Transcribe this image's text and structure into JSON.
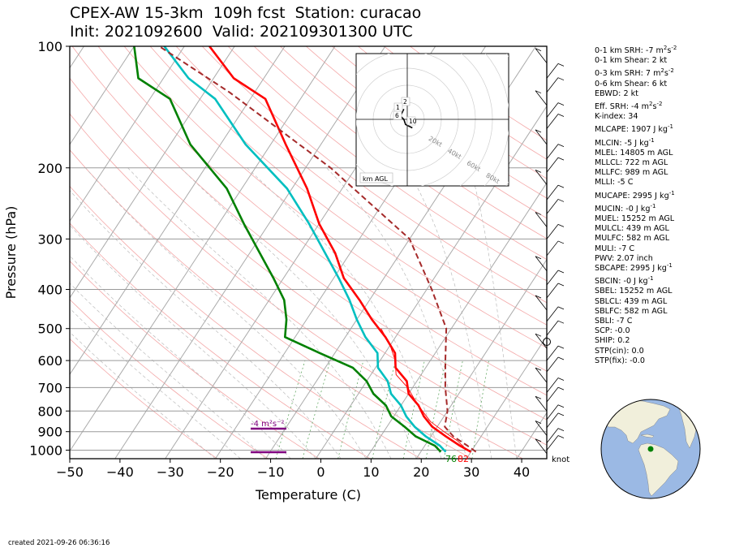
{
  "header": {
    "title_line1": "CPEX-AW 15-3km  109h fcst  Station: curacao",
    "title_line2": "Init: 2021092600  Valid: 202109301300 UTC"
  },
  "footer": {
    "created": "created 2021-09-26 06:36:16"
  },
  "chart_data": {
    "type": "line",
    "subtype": "skew-t log-p",
    "xlabel": "Temperature (C)",
    "ylabel": "Pressure (hPa)",
    "xlim": [
      -50,
      45
    ],
    "ylim": [
      1050,
      100
    ],
    "y_scale": "log",
    "x_ticks": [
      -50,
      -40,
      -30,
      -20,
      -10,
      0,
      10,
      20,
      30,
      40
    ],
    "y_ticks": [
      100,
      200,
      300,
      400,
      500,
      600,
      700,
      800,
      900,
      1000
    ],
    "grid": true,
    "series": [
      {
        "name": "",
        "color": "#ff0000",
        "points": [
          [
            30,
            1010
          ],
          [
            27,
            975
          ],
          [
            23,
            925
          ],
          [
            19,
            875
          ],
          [
            16,
            825
          ],
          [
            13.5,
            775
          ],
          [
            10,
            725
          ],
          [
            8,
            675
          ],
          [
            4,
            625
          ],
          [
            2,
            575
          ],
          [
            -2,
            525
          ],
          [
            -7,
            475
          ],
          [
            -12,
            425
          ],
          [
            -18,
            375
          ],
          [
            -23,
            325
          ],
          [
            -30,
            275
          ],
          [
            -37,
            225
          ],
          [
            -47,
            175
          ],
          [
            -57,
            135
          ],
          [
            -66,
            120
          ],
          [
            -75,
            100
          ]
        ]
      },
      {
        "name": "",
        "color": "#00bfc0",
        "points": [
          [
            25,
            1010
          ],
          [
            23,
            975
          ],
          [
            19,
            925
          ],
          [
            15.5,
            875
          ],
          [
            12.5,
            825
          ],
          [
            10,
            775
          ],
          [
            6.5,
            725
          ],
          [
            4.2,
            675
          ],
          [
            0.5,
            625
          ],
          [
            -1.5,
            575
          ],
          [
            -6,
            525
          ],
          [
            -10,
            475
          ],
          [
            -14,
            425
          ],
          [
            -19,
            375
          ],
          [
            -25,
            325
          ],
          [
            -32,
            275
          ],
          [
            -41,
            225
          ],
          [
            -55,
            175
          ],
          [
            -67,
            135
          ],
          [
            -75,
            120
          ],
          [
            -84,
            100
          ]
        ]
      },
      {
        "name": "",
        "color": "#008000",
        "points": [
          [
            24,
            1010
          ],
          [
            22,
            975
          ],
          [
            17,
            925
          ],
          [
            13.5,
            875
          ],
          [
            9.5,
            825
          ],
          [
            7,
            775
          ],
          [
            3,
            725
          ],
          [
            0,
            675
          ],
          [
            -4.5,
            625
          ],
          [
            -13,
            575
          ],
          [
            -22,
            525
          ],
          [
            -24,
            475
          ],
          [
            -27,
            425
          ],
          [
            -32,
            375
          ],
          [
            -38,
            325
          ],
          [
            -45,
            275
          ],
          [
            -53,
            225
          ],
          [
            -66,
            175
          ],
          [
            -76,
            135
          ],
          [
            -85,
            120
          ],
          [
            -90,
            100
          ]
        ]
      },
      {
        "name": "",
        "color": "#a52a2a",
        "dashed": true,
        "points": [
          [
            31,
            1010
          ],
          [
            28.5,
            975
          ],
          [
            24.5,
            925
          ],
          [
            21.5,
            875
          ],
          [
            20,
            800
          ],
          [
            16.5,
            700
          ],
          [
            13,
            600
          ],
          [
            9,
            500
          ],
          [
            1,
            400
          ],
          [
            -10,
            300
          ],
          [
            -35,
            200
          ],
          [
            -65,
            130
          ],
          [
            -85,
            100
          ]
        ]
      },
      {
        "name": "",
        "color": "#ff0000",
        "thin": true,
        "points": [
          [
            29,
            1000
          ],
          [
            26,
            950
          ],
          [
            22,
            900
          ],
          [
            18,
            850
          ],
          [
            15,
            800
          ],
          [
            12,
            750
          ],
          [
            9,
            700
          ],
          [
            5,
            650
          ],
          [
            3,
            600
          ],
          [
            0,
            550
          ],
          [
            -4,
            500
          ]
        ]
      }
    ],
    "annotations": {
      "surface_dewpoint": "76",
      "surface_temperature": "82",
      "srh_label": "-4 m²s⁻²",
      "barb_units": "knot"
    },
    "hodograph": {
      "label": "km AGL",
      "ring_labels": [
        "20kt",
        "40kt",
        "60kt",
        "80kt"
      ],
      "height_labels": [
        "2",
        "1",
        "6",
        "10"
      ],
      "points": [
        [
          -2,
          6
        ],
        [
          -3,
          4
        ],
        [
          -4,
          2
        ],
        [
          -2,
          0
        ],
        [
          -1,
          -3
        ],
        [
          3,
          -5
        ]
      ]
    }
  },
  "indices": {
    "srh01_pre": "0-1 km SRH: -7 m",
    "shear01": "0-1 km Shear: 2 kt",
    "srh03_pre": "0-3 km SRH: 7 m",
    "shear06": "0-6 km Shear: 6 kt",
    "ebwd": "EBWD: 2 kt",
    "eff_srh_pre": "Eff. SRH: -4 m",
    "kindex": "K-index: 34",
    "mlcape_pre": "MLCAPE: 1907 J kg",
    "mlcin_pre": "MLCIN: -5 J kg",
    "mlel": "MLEL: 14805 m AGL",
    "mllcl": "MLLCL: 722 m AGL",
    "mllfc": "MLLFC: 989 m AGL",
    "mlli": "MLLI: -5 C",
    "mucape_pre": "MUCAPE: 2995 J kg",
    "mucin_pre": "MUCIN: -0 J kg",
    "muel": "MUEL: 15252 m AGL",
    "mulcl": "MULCL: 439 m AGL",
    "mulfc": "MULFC: 582 m AGL",
    "muli": "MULI: -7 C",
    "pwv": "PWV: 2.07 inch",
    "sbcape_pre": "SBCAPE: 2995 J kg",
    "sbcin_pre": "SBCIN: -0 J kg",
    "sbel": "SBEL: 15252 m AGL",
    "sblcl": "SBLCL: 439 m AGL",
    "sblfc": "SBLFC: 582 m AGL",
    "sbli": "SBLI: -7 C",
    "scp": "SCP: -0.0",
    "ship": "SHIP: 0.2",
    "stp_cin": "STP(cin): 0.0",
    "stp_fix": "STP(fix): -0.0",
    "unit_m2": "2",
    "unit_s2": "s",
    "unit_neg2": "-2",
    "unit_neg1": "-1"
  },
  "colors": {
    "temperature": "#ff0000",
    "dewpoint": "#008000",
    "wetbulb": "#00bfc0",
    "parcel": "#a52a2a",
    "srh_bar": "#800080",
    "globe_ocean": "#9bb9e4",
    "globe_land": "#f1efdb",
    "station_marker": "#008000"
  }
}
